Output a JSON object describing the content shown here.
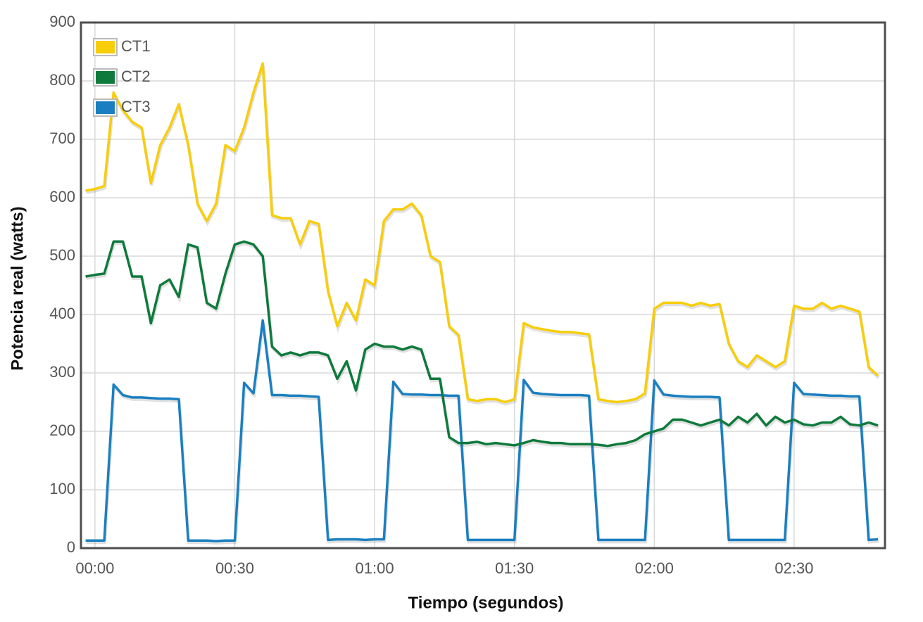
{
  "chart_data": {
    "type": "line",
    "x_label": "Tiempo (segundos)",
    "y_label": "Potencia real (watts)",
    "x": [
      -2,
      0,
      2,
      4,
      6,
      8,
      10,
      12,
      14,
      16,
      18,
      20,
      22,
      24,
      26,
      28,
      30,
      32,
      34,
      36,
      38,
      40,
      42,
      44,
      46,
      48,
      50,
      52,
      54,
      56,
      58,
      60,
      62,
      64,
      66,
      68,
      70,
      72,
      74,
      76,
      78,
      80,
      82,
      84,
      86,
      88,
      90,
      92,
      94,
      96,
      98,
      100,
      102,
      104,
      106,
      108,
      110,
      112,
      114,
      116,
      118,
      120,
      122,
      124,
      126,
      128,
      130,
      132,
      134,
      136,
      138,
      140,
      142,
      144,
      146,
      148,
      150,
      152,
      154,
      156,
      158,
      160,
      162,
      164,
      166,
      168
    ],
    "series": [
      {
        "name": "CT1",
        "color": "#f8cd0a",
        "values": [
          612,
          615,
          620,
          780,
          750,
          730,
          720,
          625,
          690,
          720,
          760,
          690,
          590,
          560,
          590,
          690,
          680,
          720,
          780,
          830,
          570,
          565,
          565,
          520,
          560,
          555,
          440,
          380,
          420,
          390,
          460,
          450,
          560,
          580,
          580,
          590,
          570,
          500,
          490,
          380,
          365,
          255,
          252,
          255,
          255,
          250,
          255,
          385,
          378,
          375,
          372,
          370,
          370,
          368,
          366,
          255,
          252,
          250,
          252,
          255,
          265,
          410,
          420,
          420,
          420,
          415,
          420,
          415,
          418,
          350,
          320,
          310,
          330,
          320,
          310,
          320,
          415,
          410,
          410,
          420,
          410,
          415,
          410,
          405,
          310,
          295
        ]
      },
      {
        "name": "CT2",
        "color": "#0e7a3c",
        "values": [
          465,
          468,
          470,
          525,
          525,
          465,
          465,
          385,
          450,
          460,
          430,
          520,
          515,
          420,
          410,
          470,
          520,
          525,
          520,
          500,
          345,
          330,
          335,
          330,
          335,
          335,
          330,
          290,
          320,
          270,
          340,
          350,
          345,
          345,
          340,
          345,
          340,
          290,
          290,
          190,
          180,
          180,
          182,
          178,
          180,
          178,
          176,
          180,
          185,
          182,
          180,
          180,
          178,
          178,
          178,
          177,
          175,
          178,
          180,
          185,
          195,
          200,
          205,
          220,
          220,
          215,
          210,
          215,
          220,
          210,
          225,
          215,
          230,
          210,
          225,
          215,
          220,
          212,
          210,
          215,
          215,
          225,
          212,
          210,
          215,
          210
        ]
      },
      {
        "name": "CT3",
        "color": "#1a7fc0",
        "values": [
          13,
          13,
          13,
          280,
          262,
          258,
          258,
          257,
          256,
          256,
          255,
          13,
          13,
          13,
          12,
          13,
          13,
          283,
          265,
          390,
          262,
          262,
          261,
          261,
          260,
          259,
          14,
          15,
          15,
          15,
          14,
          15,
          15,
          285,
          264,
          263,
          263,
          262,
          262,
          261,
          261,
          14,
          14,
          14,
          14,
          14,
          14,
          288,
          266,
          264,
          263,
          262,
          262,
          262,
          261,
          14,
          14,
          14,
          14,
          14,
          14,
          287,
          263,
          261,
          260,
          259,
          259,
          259,
          258,
          14,
          14,
          14,
          14,
          14,
          14,
          14,
          283,
          264,
          263,
          262,
          261,
          261,
          260,
          260,
          14,
          15
        ]
      }
    ],
    "xlim": [
      -3,
      169.5
    ],
    "xticks": [
      {
        "value": 0,
        "label": "00:00"
      },
      {
        "value": 30,
        "label": "00:30"
      },
      {
        "value": 60,
        "label": "01:00"
      },
      {
        "value": 90,
        "label": "01:30"
      },
      {
        "value": 120,
        "label": "02:00"
      },
      {
        "value": 150,
        "label": "02:30"
      }
    ],
    "ylim": [
      0,
      900
    ],
    "yticks": [
      0,
      100,
      200,
      300,
      400,
      500,
      600,
      700,
      800,
      900
    ],
    "grid": true,
    "legend": "top-left"
  }
}
